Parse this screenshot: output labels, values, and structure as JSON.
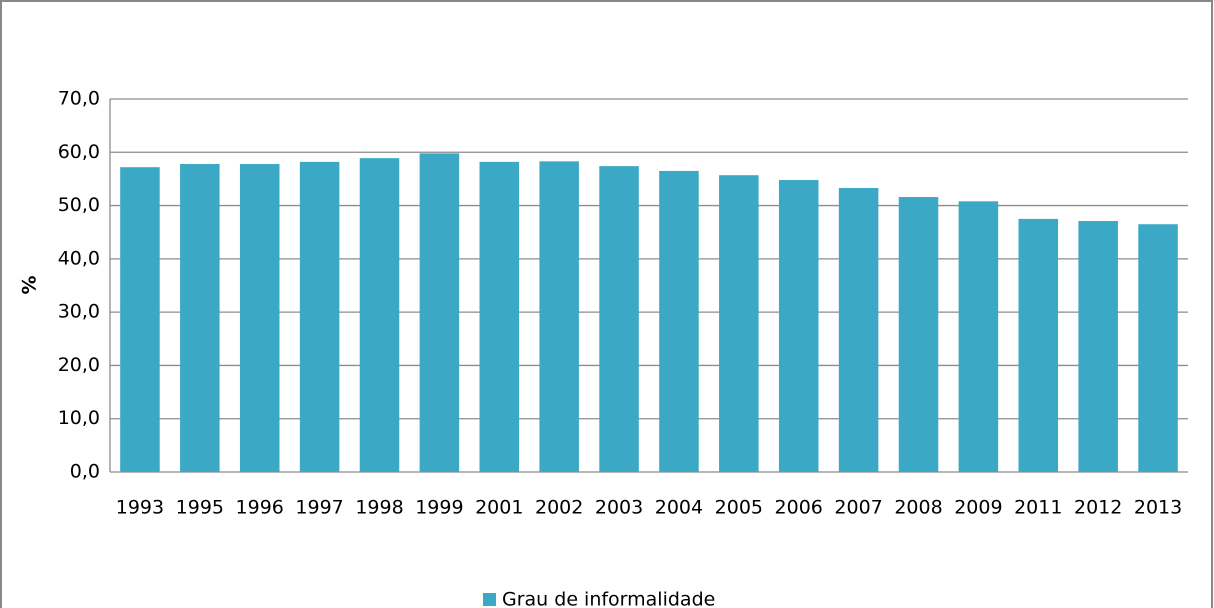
{
  "chart_data": {
    "type": "bar",
    "y_label": "%",
    "categories": [
      "1993",
      "1995",
      "1996",
      "1997",
      "1998",
      "1999",
      "2001",
      "2002",
      "2003",
      "2004",
      "2005",
      "2006",
      "2007",
      "2008",
      "2009",
      "2011",
      "2012",
      "2013"
    ],
    "series": [
      {
        "name": "Grau de informalidade",
        "color": "#3ba9c5",
        "values": [
          57.2,
          57.8,
          57.8,
          58.2,
          58.9,
          59.8,
          58.2,
          58.3,
          57.4,
          56.5,
          55.7,
          54.8,
          53.3,
          51.6,
          50.8,
          47.5,
          47.1,
          46.5
        ]
      }
    ],
    "ylim": [
      0,
      70
    ],
    "yticks": [
      {
        "value": 0,
        "label": "0,0"
      },
      {
        "value": 10,
        "label": "10,0"
      },
      {
        "value": 20,
        "label": "20,0"
      },
      {
        "value": 30,
        "label": "30,0"
      },
      {
        "value": 40,
        "label": "40,0"
      },
      {
        "value": 50,
        "label": "50,0"
      },
      {
        "value": 60,
        "label": "60,0"
      },
      {
        "value": 70,
        "label": "70,0"
      }
    ],
    "grid": true,
    "legend": "bottom"
  }
}
